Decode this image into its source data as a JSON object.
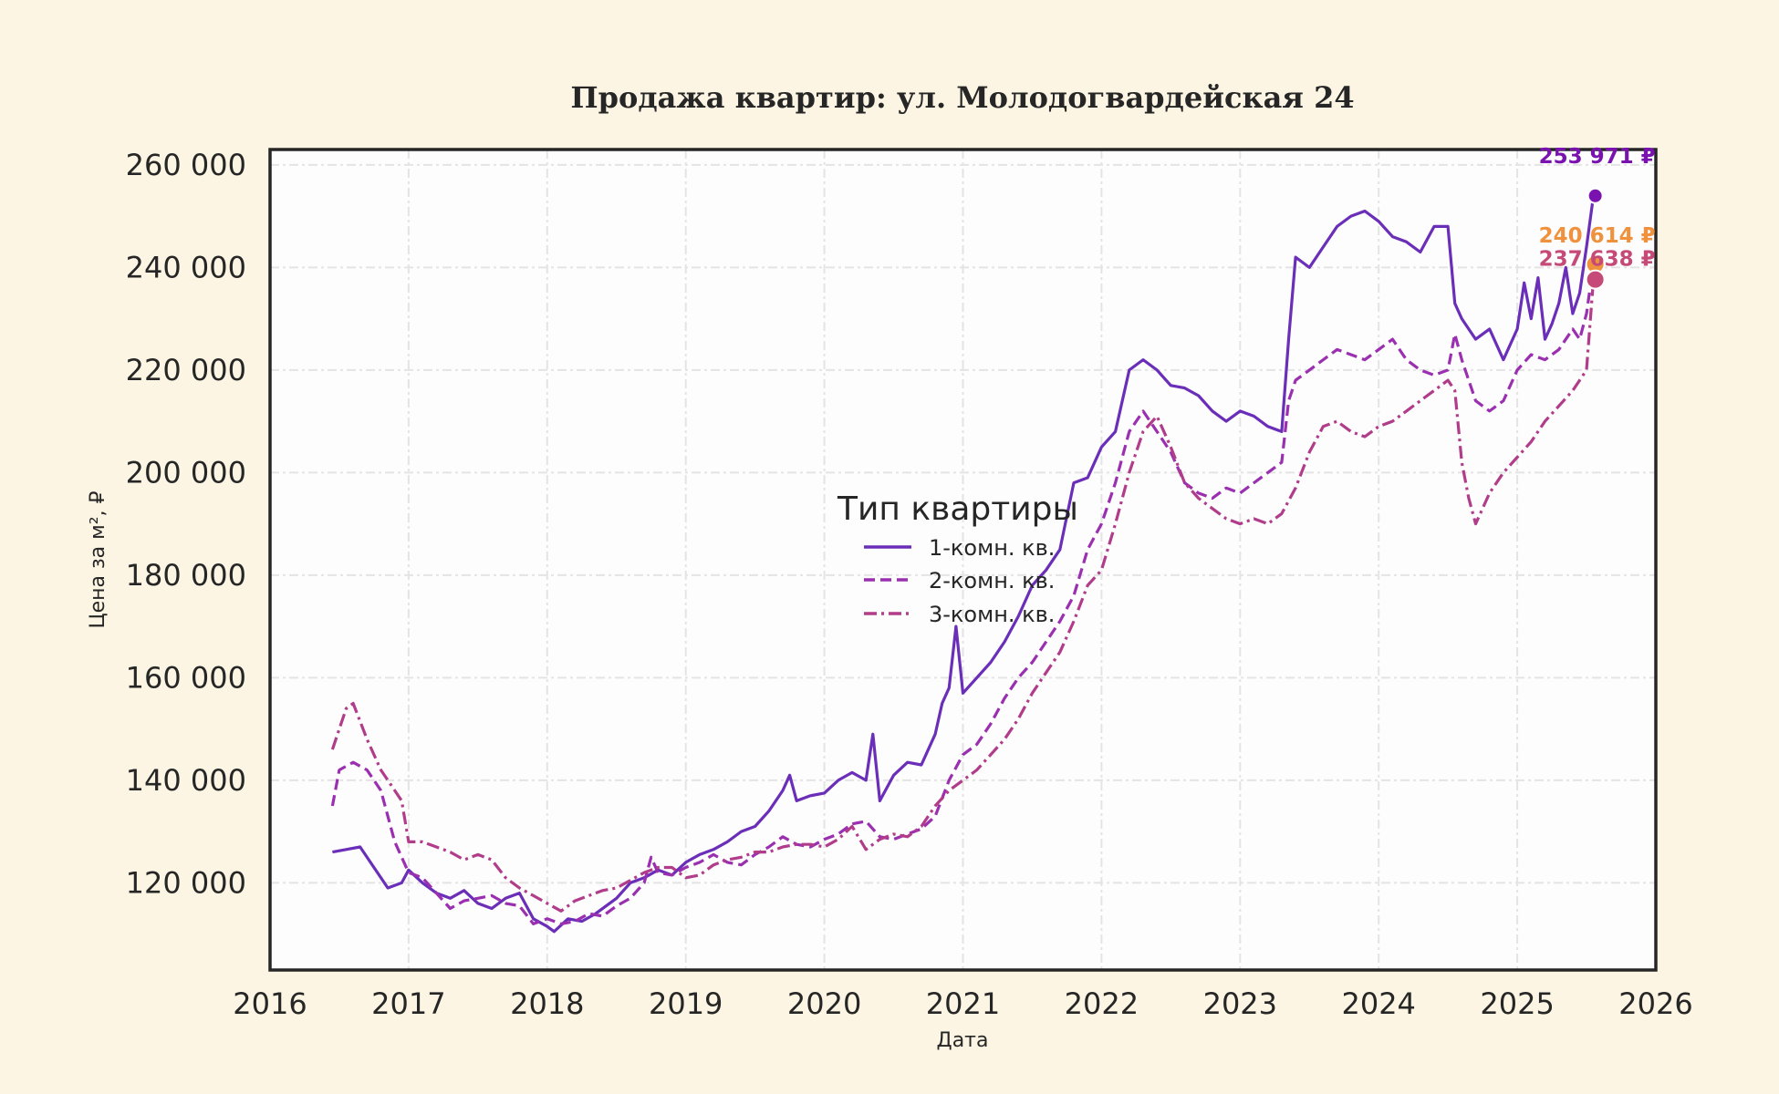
{
  "chart_data": {
    "type": "line",
    "title": "Продажа квартир: ул. Молодогвардейская 24",
    "xlabel": "Дата",
    "ylabel": "Цена за м², ₽",
    "xlim": [
      2016.0,
      2026.0
    ],
    "ylim": [
      103000,
      263000
    ],
    "x_ticks": [
      "2016",
      "2017",
      "2018",
      "2019",
      "2020",
      "2021",
      "2022",
      "2023",
      "2024",
      "2025",
      "2026"
    ],
    "y_ticks": [
      120000,
      140000,
      160000,
      180000,
      200000,
      220000,
      240000,
      260000
    ],
    "y_tick_labels": [
      "120 000",
      "140 000",
      "160 000",
      "180 000",
      "200 000",
      "220 000",
      "240 000",
      "260 000"
    ],
    "grid": true,
    "legend": {
      "title": "Тип квартиры",
      "placement": "center"
    },
    "series": [
      {
        "name": "1-комн. кв.",
        "color": "#6a2eb8",
        "style": "solid",
        "end_label": "253 971 ₽",
        "end_label_color": "#7a12b0",
        "marker_color": "#7a12b0",
        "x": [
          2016.45,
          2016.55,
          2016.65,
          2016.75,
          2016.85,
          2016.95,
          2017.0,
          2017.1,
          2017.2,
          2017.3,
          2017.4,
          2017.5,
          2017.6,
          2017.7,
          2017.8,
          2017.9,
          2018.0,
          2018.05,
          2018.15,
          2018.25,
          2018.35,
          2018.5,
          2018.6,
          2018.7,
          2018.8,
          2018.9,
          2019.0,
          2019.1,
          2019.2,
          2019.3,
          2019.4,
          2019.5,
          2019.6,
          2019.7,
          2019.75,
          2019.8,
          2019.9,
          2020.0,
          2020.1,
          2020.2,
          2020.3,
          2020.35,
          2020.4,
          2020.5,
          2020.6,
          2020.7,
          2020.8,
          2020.85,
          2020.9,
          2020.95,
          2021.0,
          2021.1,
          2021.2,
          2021.3,
          2021.4,
          2021.5,
          2021.6,
          2021.7,
          2021.8,
          2021.9,
          2022.0,
          2022.1,
          2022.2,
          2022.3,
          2022.4,
          2022.5,
          2022.6,
          2022.7,
          2022.8,
          2022.9,
          2023.0,
          2023.1,
          2023.2,
          2023.3,
          2023.35,
          2023.4,
          2023.5,
          2023.6,
          2023.7,
          2023.8,
          2023.9,
          2024.0,
          2024.1,
          2024.2,
          2024.3,
          2024.4,
          2024.5,
          2024.55,
          2024.6,
          2024.7,
          2024.8,
          2024.9,
          2025.0,
          2025.05,
          2025.1,
          2025.15,
          2025.2,
          2025.25,
          2025.3,
          2025.35,
          2025.4,
          2025.45,
          2025.5,
          2025.55
        ],
        "y": [
          126000,
          126500,
          127000,
          123000,
          119000,
          120000,
          122500,
          120000,
          118000,
          117000,
          118500,
          116000,
          115000,
          117000,
          118000,
          113000,
          111500,
          110500,
          113000,
          112500,
          114000,
          117000,
          120000,
          121000,
          122500,
          121500,
          124000,
          125500,
          126500,
          128000,
          130000,
          131000,
          134000,
          138000,
          141000,
          136000,
          137000,
          137500,
          140000,
          141500,
          140000,
          149000,
          136000,
          141000,
          143500,
          143000,
          149000,
          155000,
          158000,
          170000,
          157000,
          160000,
          163000,
          167000,
          172000,
          178000,
          181000,
          185000,
          198000,
          199000,
          205000,
          208000,
          220000,
          222000,
          220000,
          217000,
          216500,
          215000,
          212000,
          210000,
          212000,
          211000,
          209000,
          208000,
          226000,
          242000,
          240000,
          244000,
          248000,
          250000,
          251000,
          249000,
          246000,
          245000,
          243000,
          248000,
          248000,
          233000,
          230000,
          226000,
          228000,
          222000,
          228000,
          237000,
          230000,
          238000,
          226000,
          229000,
          233000,
          240000,
          231000,
          235000,
          244000,
          253971
        ]
      },
      {
        "name": "2-комн. кв.",
        "color": "#9a2fb0",
        "style": "dashed",
        "end_label": "240 614 ₽",
        "end_label_color": "#f0913e",
        "marker_color": "#f0913e",
        "x": [
          2016.45,
          2016.5,
          2016.6,
          2016.7,
          2016.8,
          2016.9,
          2017.0,
          2017.1,
          2017.2,
          2017.3,
          2017.4,
          2017.5,
          2017.6,
          2017.7,
          2017.8,
          2017.9,
          2018.0,
          2018.1,
          2018.2,
          2018.3,
          2018.4,
          2018.5,
          2018.6,
          2018.7,
          2018.75,
          2018.8,
          2018.9,
          2019.0,
          2019.1,
          2019.2,
          2019.3,
          2019.4,
          2019.5,
          2019.6,
          2019.7,
          2019.8,
          2019.9,
          2020.0,
          2020.1,
          2020.2,
          2020.3,
          2020.4,
          2020.5,
          2020.6,
          2020.7,
          2020.8,
          2020.9,
          2021.0,
          2021.1,
          2021.2,
          2021.3,
          2021.4,
          2021.5,
          2021.6,
          2021.7,
          2021.8,
          2021.9,
          2022.0,
          2022.1,
          2022.2,
          2022.3,
          2022.4,
          2022.5,
          2022.6,
          2022.7,
          2022.8,
          2022.9,
          2023.0,
          2023.1,
          2023.2,
          2023.3,
          2023.35,
          2023.4,
          2023.5,
          2023.6,
          2023.7,
          2023.8,
          2023.9,
          2024.0,
          2024.1,
          2024.2,
          2024.3,
          2024.4,
          2024.5,
          2024.55,
          2024.6,
          2024.7,
          2024.8,
          2024.9,
          2025.0,
          2025.1,
          2025.2,
          2025.3,
          2025.4,
          2025.45,
          2025.5,
          2025.55
        ],
        "y": [
          135000,
          142000,
          143500,
          142000,
          138000,
          128000,
          122000,
          121000,
          118000,
          115000,
          116500,
          117000,
          117500,
          116000,
          115500,
          112000,
          113000,
          112000,
          112500,
          114000,
          113500,
          115500,
          117000,
          120000,
          125000,
          122000,
          121500,
          123000,
          124000,
          125500,
          124000,
          123500,
          125500,
          127000,
          129000,
          127500,
          127000,
          128500,
          129500,
          131500,
          132000,
          129000,
          128500,
          129500,
          130500,
          133000,
          140000,
          145000,
          147000,
          151000,
          156000,
          160000,
          163000,
          167000,
          171000,
          176000,
          185000,
          190000,
          198000,
          208000,
          212000,
          208000,
          204000,
          198000,
          196000,
          195000,
          197000,
          196000,
          198000,
          200000,
          202000,
          214000,
          218000,
          220000,
          222000,
          224000,
          223000,
          222000,
          224000,
          226000,
          222000,
          220000,
          219000,
          220000,
          227000,
          222000,
          214000,
          212000,
          214000,
          220000,
          223000,
          222000,
          224000,
          228000,
          226000,
          231000,
          240614
        ]
      },
      {
        "name": "3-комн. кв.",
        "color": "#b03c8a",
        "style": "dashdot",
        "end_label": "237 638 ₽",
        "end_label_color": "#c64a78",
        "marker_color": "#c64a78",
        "x": [
          2016.45,
          2016.5,
          2016.55,
          2016.6,
          2016.7,
          2016.8,
          2016.9,
          2016.95,
          2017.0,
          2017.1,
          2017.2,
          2017.3,
          2017.4,
          2017.5,
          2017.6,
          2017.7,
          2017.8,
          2017.9,
          2018.0,
          2018.1,
          2018.2,
          2018.3,
          2018.4,
          2018.5,
          2018.6,
          2018.7,
          2018.8,
          2018.9,
          2019.0,
          2019.1,
          2019.2,
          2019.3,
          2019.4,
          2019.5,
          2019.6,
          2019.7,
          2019.8,
          2019.9,
          2020.0,
          2020.1,
          2020.2,
          2020.3,
          2020.4,
          2020.5,
          2020.6,
          2020.7,
          2020.8,
          2020.9,
          2021.0,
          2021.1,
          2021.2,
          2021.3,
          2021.4,
          2021.5,
          2021.6,
          2021.7,
          2021.8,
          2021.9,
          2022.0,
          2022.1,
          2022.2,
          2022.3,
          2022.4,
          2022.5,
          2022.6,
          2022.7,
          2022.8,
          2022.9,
          2023.0,
          2023.1,
          2023.2,
          2023.3,
          2023.4,
          2023.5,
          2023.6,
          2023.7,
          2023.8,
          2023.9,
          2024.0,
          2024.1,
          2024.2,
          2024.3,
          2024.4,
          2024.5,
          2024.55,
          2024.6,
          2024.65,
          2024.7,
          2024.8,
          2024.9,
          2025.0,
          2025.1,
          2025.2,
          2025.3,
          2025.4,
          2025.45,
          2025.5,
          2025.55
        ],
        "y": [
          146000,
          150000,
          154000,
          155000,
          148000,
          142000,
          138000,
          136000,
          128000,
          128000,
          127000,
          126000,
          124500,
          125500,
          124500,
          121000,
          119000,
          117500,
          116000,
          114500,
          116500,
          117500,
          118500,
          119000,
          120500,
          122000,
          123000,
          123000,
          121000,
          121500,
          123500,
          124500,
          125000,
          126000,
          126000,
          127000,
          127500,
          127500,
          127000,
          128500,
          131000,
          126500,
          128500,
          129500,
          129000,
          131000,
          135000,
          138000,
          140000,
          142000,
          145000,
          148000,
          152000,
          157000,
          161000,
          165000,
          171000,
          178000,
          181000,
          190000,
          200000,
          208000,
          211000,
          205000,
          198000,
          195000,
          193000,
          191000,
          190000,
          191000,
          190000,
          192000,
          197000,
          204000,
          209000,
          210000,
          208000,
          207000,
          209000,
          210000,
          212000,
          214000,
          216000,
          218000,
          216000,
          202000,
          195000,
          190000,
          196000,
          200000,
          203000,
          206000,
          210000,
          213000,
          216000,
          218000,
          220000,
          237638
        ]
      }
    ]
  }
}
